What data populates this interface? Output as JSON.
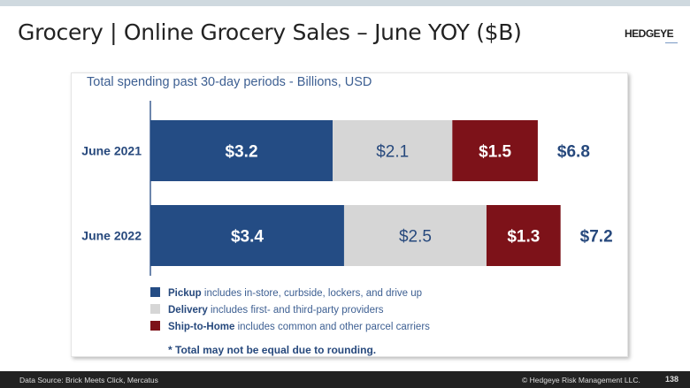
{
  "title": "Grocery | Online Grocery Sales – June YOY ($B)",
  "logo": "HEDGEYE",
  "footer": {
    "source": "Data Source: Brick Meets Click, Mercatus",
    "copyright": "© Hedgeye Risk Management LLC.",
    "page": "138"
  },
  "chart_data": {
    "type": "bar",
    "orientation": "horizontal",
    "stacked": true,
    "subtitle": "Total spending past 30-day periods - Billions, USD",
    "categories": [
      "June 2021",
      "June 2022"
    ],
    "series": [
      {
        "name": "Pickup",
        "values": [
          3.2,
          3.4
        ],
        "labels": [
          "$3.2",
          "$3.4"
        ],
        "color": "#244c84"
      },
      {
        "name": "Delivery",
        "values": [
          2.1,
          2.5
        ],
        "labels": [
          "$2.1",
          "$2.5"
        ],
        "color": "#d6d6d6"
      },
      {
        "name": "Ship-to-Home",
        "values": [
          1.5,
          1.3
        ],
        "labels": [
          "$1.5",
          "$1.3"
        ],
        "color": "#7d1219"
      }
    ],
    "totals": [
      "$6.8",
      "$7.2"
    ],
    "legend": [
      {
        "name": "Pickup",
        "desc": " includes in-store, curbside, lockers, and drive up"
      },
      {
        "name": "Delivery",
        "desc": " includes first- and third-party providers"
      },
      {
        "name": "Ship-to-Home",
        "desc": " includes common and other parcel carriers"
      }
    ],
    "legend_position": "bottom",
    "note": "* Total may not be equal due to rounding."
  }
}
